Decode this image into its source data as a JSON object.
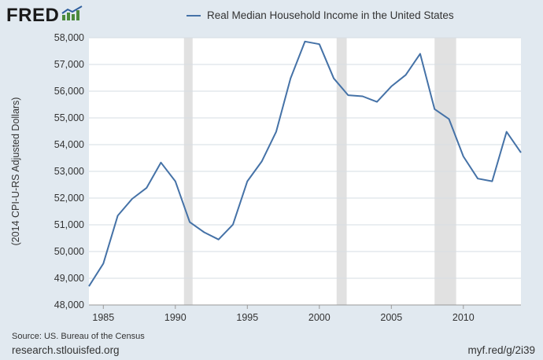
{
  "header": {
    "logo_text": "FRED",
    "logo_icon": "trend-chart-icon"
  },
  "footer": {
    "source": "Source: US. Bureau of the Census",
    "site_url": "research.stlouisfed.org",
    "short_url": "myf.red/g/2i39"
  },
  "colors": {
    "line": "#4572a7",
    "recession": "#e1e1e1",
    "background": "#e1e9f0",
    "plot_bg": "#ffffff"
  },
  "chart_data": {
    "type": "line",
    "title": "",
    "xlabel": "",
    "ylabel": "(2014 CPI-U-RS Adjusted Dollars)",
    "xlim": [
      1984,
      2014
    ],
    "ylim": [
      48000,
      58000
    ],
    "y_ticks": [
      48000,
      49000,
      50000,
      51000,
      52000,
      53000,
      54000,
      55000,
      56000,
      57000,
      58000
    ],
    "y_tick_labels": [
      "48,000",
      "49,000",
      "50,000",
      "51,000",
      "52,000",
      "53,000",
      "54,000",
      "55,000",
      "56,000",
      "57,000",
      "58,000"
    ],
    "x_ticks": [
      1985,
      1990,
      1995,
      2000,
      2005,
      2010
    ],
    "x_tick_labels": [
      "1985",
      "1990",
      "1995",
      "2000",
      "2005",
      "2010"
    ],
    "recessions": [
      [
        1990.6,
        1991.2
      ],
      [
        2001.2,
        2001.9
      ],
      [
        2008.0,
        2009.5
      ]
    ],
    "series": [
      {
        "name": "Real Median Household Income in the United States",
        "x": [
          1984,
          1985,
          1986,
          1987,
          1988,
          1989,
          1990,
          1991,
          1992,
          1993,
          1994,
          1995,
          1996,
          1997,
          1998,
          1999,
          2000,
          2001,
          2002,
          2003,
          2004,
          2005,
          2006,
          2007,
          2008,
          2009,
          2010,
          2011,
          2012,
          2013,
          2014
        ],
        "values": [
          48700,
          49550,
          51340,
          51970,
          52380,
          53330,
          52630,
          51100,
          50720,
          50450,
          51010,
          52630,
          53370,
          54480,
          56480,
          57860,
          57760,
          56480,
          55850,
          55810,
          55600,
          56180,
          56610,
          57400,
          55330,
          54960,
          53560,
          52730,
          52630,
          54480,
          53700
        ]
      }
    ]
  }
}
